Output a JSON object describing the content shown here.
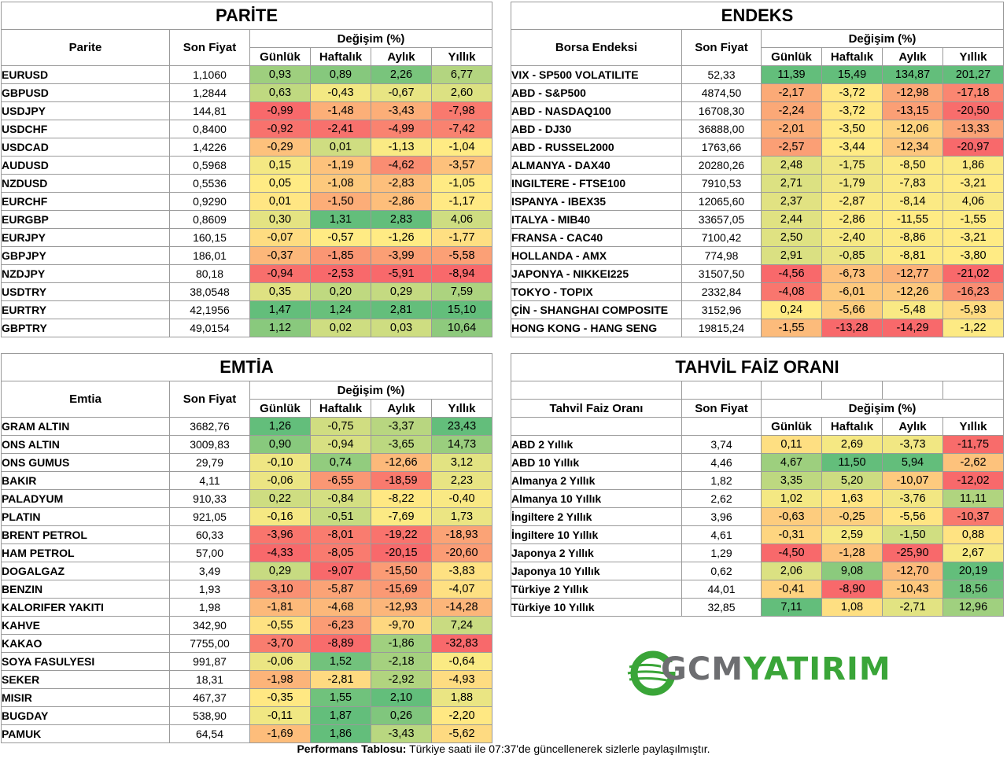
{
  "palette": {
    "min": "#f8696b",
    "mid": "#ffeb84",
    "max": "#63be7b"
  },
  "parite": {
    "title": "PARİTE",
    "col_name": "Parite",
    "col_price": "Son Fiyat",
    "col_change": "Değişim (%)",
    "periods": [
      "Günlük",
      "Haftalık",
      "Aylık",
      "Yıllık"
    ],
    "rows": [
      {
        "name": "EURUSD",
        "price": "1,1060",
        "changes": [
          "0,93",
          "0,89",
          "2,26",
          "6,77"
        ]
      },
      {
        "name": "GBPUSD",
        "price": "1,2844",
        "changes": [
          "0,63",
          "-0,43",
          "-0,67",
          "2,60"
        ]
      },
      {
        "name": "USDJPY",
        "price": "144,81",
        "changes": [
          "-0,99",
          "-1,48",
          "-3,43",
          "-7,98"
        ]
      },
      {
        "name": "USDCHF",
        "price": "0,8400",
        "changes": [
          "-0,92",
          "-2,41",
          "-4,99",
          "-7,42"
        ]
      },
      {
        "name": "USDCAD",
        "price": "1,4226",
        "changes": [
          "-0,29",
          "0,01",
          "-1,13",
          "-1,04"
        ]
      },
      {
        "name": "AUDUSD",
        "price": "0,5968",
        "changes": [
          "0,15",
          "-1,19",
          "-4,62",
          "-3,57"
        ]
      },
      {
        "name": "NZDUSD",
        "price": "0,5536",
        "changes": [
          "0,05",
          "-1,08",
          "-2,83",
          "-1,05"
        ]
      },
      {
        "name": "EURCHF",
        "price": "0,9290",
        "changes": [
          "0,01",
          "-1,50",
          "-2,86",
          "-1,17"
        ]
      },
      {
        "name": "EURGBP",
        "price": "0,8609",
        "changes": [
          "0,30",
          "1,31",
          "2,83",
          "4,06"
        ]
      },
      {
        "name": "EURJPY",
        "price": "160,15",
        "changes": [
          "-0,07",
          "-0,57",
          "-1,26",
          "-1,77"
        ]
      },
      {
        "name": "GBPJPY",
        "price": "186,01",
        "changes": [
          "-0,37",
          "-1,85",
          "-3,99",
          "-5,58"
        ]
      },
      {
        "name": "NZDJPY",
        "price": "80,18",
        "changes": [
          "-0,94",
          "-2,53",
          "-5,91",
          "-8,94"
        ]
      },
      {
        "name": "USDTRY",
        "price": "38,0548",
        "changes": [
          "0,35",
          "0,20",
          "0,29",
          "7,59"
        ]
      },
      {
        "name": "EURTRY",
        "price": "42,1956",
        "changes": [
          "1,47",
          "1,24",
          "2,81",
          "15,10"
        ]
      },
      {
        "name": "GBPTRY",
        "price": "49,0154",
        "changes": [
          "1,12",
          "0,02",
          "0,03",
          "10,64"
        ]
      }
    ]
  },
  "endeks": {
    "title": "ENDEKS",
    "col_name": "Borsa Endeksi",
    "col_price": "Son Fiyat",
    "col_change": "Değişim (%)",
    "periods": [
      "Günlük",
      "Haftalık",
      "Aylık",
      "Yıllık"
    ],
    "rows": [
      {
        "name": "VIX  - SP500 VOLATILITE",
        "price": "52,33",
        "changes": [
          "11,39",
          "15,49",
          "134,87",
          "201,27"
        ]
      },
      {
        "name": "ABD - S&P500",
        "price": "4874,50",
        "changes": [
          "-2,17",
          "-3,72",
          "-12,98",
          "-17,18"
        ]
      },
      {
        "name": "ABD - NASDAQ100",
        "price": "16708,30",
        "changes": [
          "-2,24",
          "-3,72",
          "-13,15",
          "-20,50"
        ]
      },
      {
        "name": "ABD - DJ30",
        "price": "36888,00",
        "changes": [
          "-2,01",
          "-3,50",
          "-12,06",
          "-13,33"
        ]
      },
      {
        "name": "ABD - RUSSEL2000",
        "price": "1763,66",
        "changes": [
          "-2,57",
          "-3,44",
          "-12,34",
          "-20,97"
        ]
      },
      {
        "name": "ALMANYA - DAX40",
        "price": "20280,26",
        "changes": [
          "2,48",
          "-1,75",
          "-8,50",
          "1,86"
        ]
      },
      {
        "name": "INGILTERE - FTSE100",
        "price": "7910,53",
        "changes": [
          "2,71",
          "-1,79",
          "-7,83",
          "-3,21"
        ]
      },
      {
        "name": "ISPANYA - IBEX35",
        "price": "12065,60",
        "changes": [
          "2,37",
          "-2,87",
          "-8,14",
          "4,06"
        ]
      },
      {
        "name": "ITALYA - MIB40",
        "price": "33657,05",
        "changes": [
          "2,44",
          "-2,86",
          "-11,55",
          "-1,55"
        ]
      },
      {
        "name": "FRANSA - CAC40",
        "price": "7100,42",
        "changes": [
          "2,50",
          "-2,40",
          "-8,86",
          "-3,21"
        ]
      },
      {
        "name": "HOLLANDA - AMX",
        "price": "774,98",
        "changes": [
          "2,91",
          "-0,85",
          "-8,81",
          "-3,80"
        ]
      },
      {
        "name": "JAPONYA - NIKKEI225",
        "price": "31507,50",
        "changes": [
          "-4,56",
          "-6,73",
          "-12,77",
          "-21,02"
        ]
      },
      {
        "name": "TOKYO - TOPIX",
        "price": "2332,84",
        "changes": [
          "-4,08",
          "-6,01",
          "-12,26",
          "-16,23"
        ]
      },
      {
        "name": "ÇİN - SHANGHAI COMPOSITE",
        "price": "3152,96",
        "changes": [
          "0,24",
          "-5,66",
          "-5,48",
          "-5,93"
        ]
      },
      {
        "name": "HONG KONG - HANG SENG",
        "price": "19815,24",
        "changes": [
          "-1,55",
          "-13,28",
          "-14,29",
          "-1,22"
        ]
      }
    ]
  },
  "emtia": {
    "title": "EMTİA",
    "col_name": "Emtia",
    "col_price": "Son Fiyat",
    "col_change": "Değişim (%)",
    "periods": [
      "Günlük",
      "Haftalık",
      "Aylık",
      "Yıllık"
    ],
    "rows": [
      {
        "name": "GRAM ALTIN",
        "price": "3682,76",
        "changes": [
          "1,26",
          "-0,75",
          "-3,37",
          "23,43"
        ]
      },
      {
        "name": "ONS ALTIN",
        "price": "3009,83",
        "changes": [
          "0,90",
          "-0,94",
          "-3,65",
          "14,73"
        ]
      },
      {
        "name": "ONS GUMUS",
        "price": "29,79",
        "changes": [
          "-0,10",
          "0,74",
          "-12,66",
          "3,12"
        ]
      },
      {
        "name": "BAKIR",
        "price": "4,11",
        "changes": [
          "-0,06",
          "-6,55",
          "-18,59",
          "2,23"
        ]
      },
      {
        "name": "PALADYUM",
        "price": "910,33",
        "changes": [
          "0,22",
          "-0,84",
          "-8,22",
          "-0,40"
        ]
      },
      {
        "name": "PLATIN",
        "price": "921,05",
        "changes": [
          "-0,16",
          "-0,51",
          "-7,69",
          "1,73"
        ]
      },
      {
        "name": "BRENT PETROL",
        "price": "60,33",
        "changes": [
          "-3,96",
          "-8,01",
          "-19,22",
          "-18,93"
        ]
      },
      {
        "name": "HAM PETROL",
        "price": "57,00",
        "changes": [
          "-4,33",
          "-8,05",
          "-20,15",
          "-20,60"
        ]
      },
      {
        "name": "DOGALGAZ",
        "price": "3,49",
        "changes": [
          "0,29",
          "-9,07",
          "-15,50",
          "-3,83"
        ]
      },
      {
        "name": "BENZIN",
        "price": "1,93",
        "changes": [
          "-3,10",
          "-5,87",
          "-15,69",
          "-4,07"
        ]
      },
      {
        "name": "KALORIFER YAKITI",
        "price": "1,98",
        "changes": [
          "-1,81",
          "-4,68",
          "-12,93",
          "-14,28"
        ]
      },
      {
        "name": "KAHVE",
        "price": "342,90",
        "changes": [
          "-0,55",
          "-6,23",
          "-9,70",
          "7,24"
        ]
      },
      {
        "name": "KAKAO",
        "price": "7755,00",
        "changes": [
          "-3,70",
          "-8,89",
          "-1,86",
          "-32,83"
        ]
      },
      {
        "name": "SOYA FASULYESI",
        "price": "991,87",
        "changes": [
          "-0,06",
          "1,52",
          "-2,18",
          "-0,64"
        ]
      },
      {
        "name": "SEKER",
        "price": "18,31",
        "changes": [
          "-1,98",
          "-2,81",
          "-2,92",
          "-4,93"
        ]
      },
      {
        "name": "MISIR",
        "price": "467,37",
        "changes": [
          "-0,35",
          "1,55",
          "2,10",
          "1,88"
        ]
      },
      {
        "name": "BUGDAY",
        "price": "538,90",
        "changes": [
          "-0,11",
          "1,87",
          "0,26",
          "-2,20"
        ]
      },
      {
        "name": "PAMUK",
        "price": "64,54",
        "changes": [
          "-1,69",
          "1,86",
          "-3,43",
          "-5,62"
        ]
      }
    ]
  },
  "tahvil": {
    "title": "TAHVİL FAİZ ORANI",
    "col_name": "Tahvil Faiz Oranı",
    "col_price": "Son Fiyat",
    "col_change": "Değişim (%)",
    "periods": [
      "Günlük",
      "Haftalık",
      "Aylık",
      "Yıllık"
    ],
    "rows": [
      {
        "name": "ABD 2 Yıllık",
        "price": "3,74",
        "changes": [
          "0,11",
          "2,69",
          "-3,73",
          "-11,75"
        ]
      },
      {
        "name": "ABD 10 Yıllık",
        "price": "4,46",
        "changes": [
          "4,67",
          "11,50",
          "5,94",
          "-2,62"
        ]
      },
      {
        "name": "Almanya 2 Yıllık",
        "price": "1,82",
        "changes": [
          "3,35",
          "5,20",
          "-10,07",
          "-12,02"
        ]
      },
      {
        "name": "Almanya 10 Yıllık",
        "price": "2,62",
        "changes": [
          "1,02",
          "1,63",
          "-3,76",
          "11,11"
        ]
      },
      {
        "name": "İngiltere 2 Yıllık",
        "price": "3,96",
        "changes": [
          "-0,63",
          "-0,25",
          "-5,56",
          "-10,37"
        ]
      },
      {
        "name": "İngiltere 10 Yıllık",
        "price": "4,61",
        "changes": [
          "-0,31",
          "2,59",
          "-1,50",
          "0,88"
        ]
      },
      {
        "name": "Japonya 2 Yıllık",
        "price": "1,29",
        "changes": [
          "-4,50",
          "-1,28",
          "-25,90",
          "2,67"
        ]
      },
      {
        "name": "Japonya 10 Yıllık",
        "price": "0,62",
        "changes": [
          "2,06",
          "9,08",
          "-12,70",
          "20,19"
        ]
      },
      {
        "name": "Türkiye 2 Yıllık",
        "price": "44,01",
        "changes": [
          "-0,41",
          "-8,90",
          "-10,43",
          "18,56"
        ]
      },
      {
        "name": "Türkiye 10 Yıllık",
        "price": "32,85",
        "changes": [
          "7,11",
          "1,08",
          "-2,71",
          "12,96"
        ]
      }
    ]
  },
  "logo": {
    "part1": "GCM",
    "part2": "YATIRIM",
    "icon": "globe-swoosh-icon"
  },
  "footer": {
    "bold": "Performans Tablosu:",
    "text": " Türkiye saati ile 07:37'de güncellenerek sizlerle paylaşılmıştır."
  }
}
